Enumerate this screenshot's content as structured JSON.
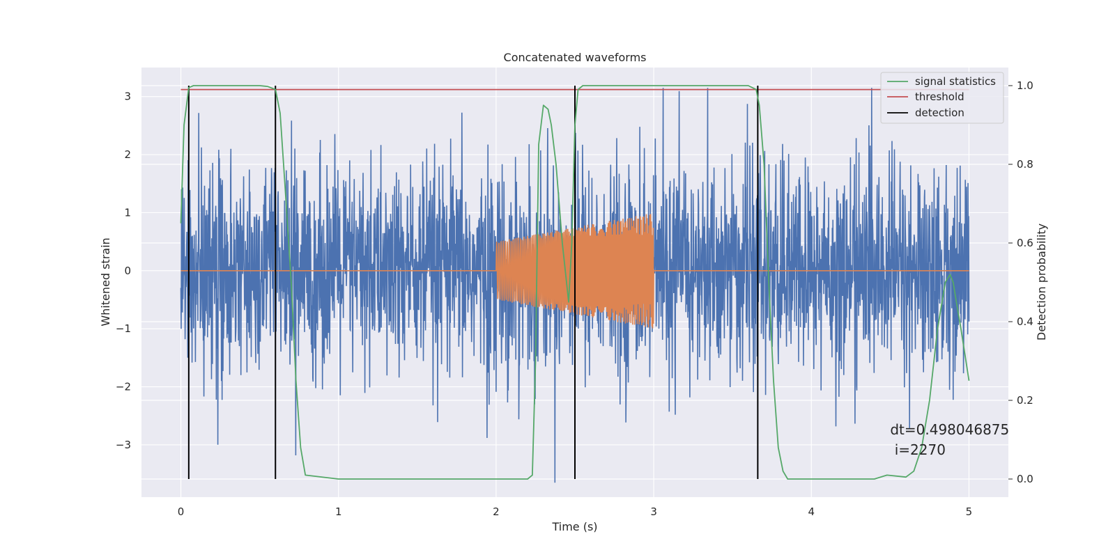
{
  "chart_data": {
    "type": "line",
    "title": "Concatenated waveforms",
    "xlabel": "Time (s)",
    "ylabel": "Whitened strain",
    "y2label": "Detection probability",
    "xlim": [
      -0.25,
      5.25
    ],
    "ylim": [
      -3.9,
      3.5
    ],
    "y2lim": [
      -0.046,
      1.046
    ],
    "xticks": [
      0,
      1,
      2,
      3,
      4,
      5
    ],
    "xtick_labels": [
      "0",
      "1",
      "2",
      "3",
      "4",
      "5"
    ],
    "yticks": [
      -3,
      -2,
      -1,
      0,
      1,
      2,
      3
    ],
    "ytick_labels": [
      "−3",
      "−2",
      "−1",
      "0",
      "1",
      "2",
      "3"
    ],
    "y2ticks": [
      0.0,
      0.2,
      0.4,
      0.6,
      0.8,
      1.0
    ],
    "y2tick_labels": [
      "0.0",
      "0.2",
      "0.4",
      "0.6",
      "0.8",
      "1.0"
    ],
    "grid": true,
    "legend_position": "top-right",
    "series": [
      {
        "name": "",
        "axis": "left",
        "kind": "noise",
        "color": "#4c72b0",
        "x_range": [
          0,
          5
        ],
        "amplitude_typical": 1.4,
        "amplitude_max": 3.65
      },
      {
        "name": "",
        "axis": "left",
        "kind": "chirp",
        "color": "#dd8452",
        "x_range": [
          0,
          5
        ],
        "chirp_start": 2.0,
        "chirp_end": 3.0,
        "amplitude_start": 0.5,
        "amplitude_end": 1.0,
        "baseline": 0
      },
      {
        "name": "signal statistics",
        "axis": "right",
        "color": "#55a868",
        "x": [
          0,
          0.02,
          0.05,
          0.08,
          0.12,
          0.5,
          0.55,
          0.6,
          0.63,
          0.66,
          0.7,
          0.73,
          0.76,
          0.79,
          1.0,
          2.0,
          2.2,
          2.23,
          2.25,
          2.27,
          2.3,
          2.33,
          2.35,
          2.38,
          2.42,
          2.46,
          2.48,
          2.5,
          2.52,
          2.55,
          2.6,
          3.0,
          3.6,
          3.65,
          3.67,
          3.7,
          3.73,
          3.76,
          3.79,
          3.82,
          3.85,
          4.0,
          4.4,
          4.48,
          4.6,
          4.65,
          4.7,
          4.75,
          4.8,
          4.85,
          4.88,
          4.9,
          4.92,
          4.95,
          5.0
        ],
        "y": [
          0.65,
          0.9,
          0.995,
          1.0,
          1.0,
          1.0,
          0.998,
          0.99,
          0.93,
          0.75,
          0.5,
          0.25,
          0.08,
          0.01,
          0.0,
          0.0,
          0.0,
          0.01,
          0.3,
          0.85,
          0.95,
          0.94,
          0.9,
          0.8,
          0.6,
          0.45,
          0.6,
          0.9,
          0.99,
          1.0,
          1.0,
          1.0,
          1.0,
          0.99,
          0.95,
          0.8,
          0.5,
          0.25,
          0.08,
          0.02,
          0.0,
          0.0,
          0.0,
          0.01,
          0.005,
          0.02,
          0.08,
          0.2,
          0.38,
          0.5,
          0.52,
          0.5,
          0.45,
          0.38,
          0.25
        ]
      },
      {
        "name": "threshold",
        "axis": "right",
        "color": "#c44e52",
        "x": [
          0,
          5
        ],
        "y": [
          0.99,
          0.99
        ]
      },
      {
        "name": "detection",
        "axis": "right",
        "color": "#000000",
        "segments": [
          {
            "x": 0.05,
            "y": [
              0.0,
              1.0
            ]
          },
          {
            "x": 0.6,
            "y": [
              0.0,
              1.0
            ]
          },
          {
            "x": 2.5,
            "y": [
              0.0,
              1.0
            ]
          },
          {
            "x": 3.66,
            "y": [
              0.0,
              1.0
            ]
          }
        ]
      }
    ],
    "annotations": [
      {
        "text": "dt=0.498046875",
        "x": 4.5,
        "y": 0.113
      },
      {
        "text": " i=2270",
        "x": 4.5,
        "y": 0.062
      }
    ]
  }
}
